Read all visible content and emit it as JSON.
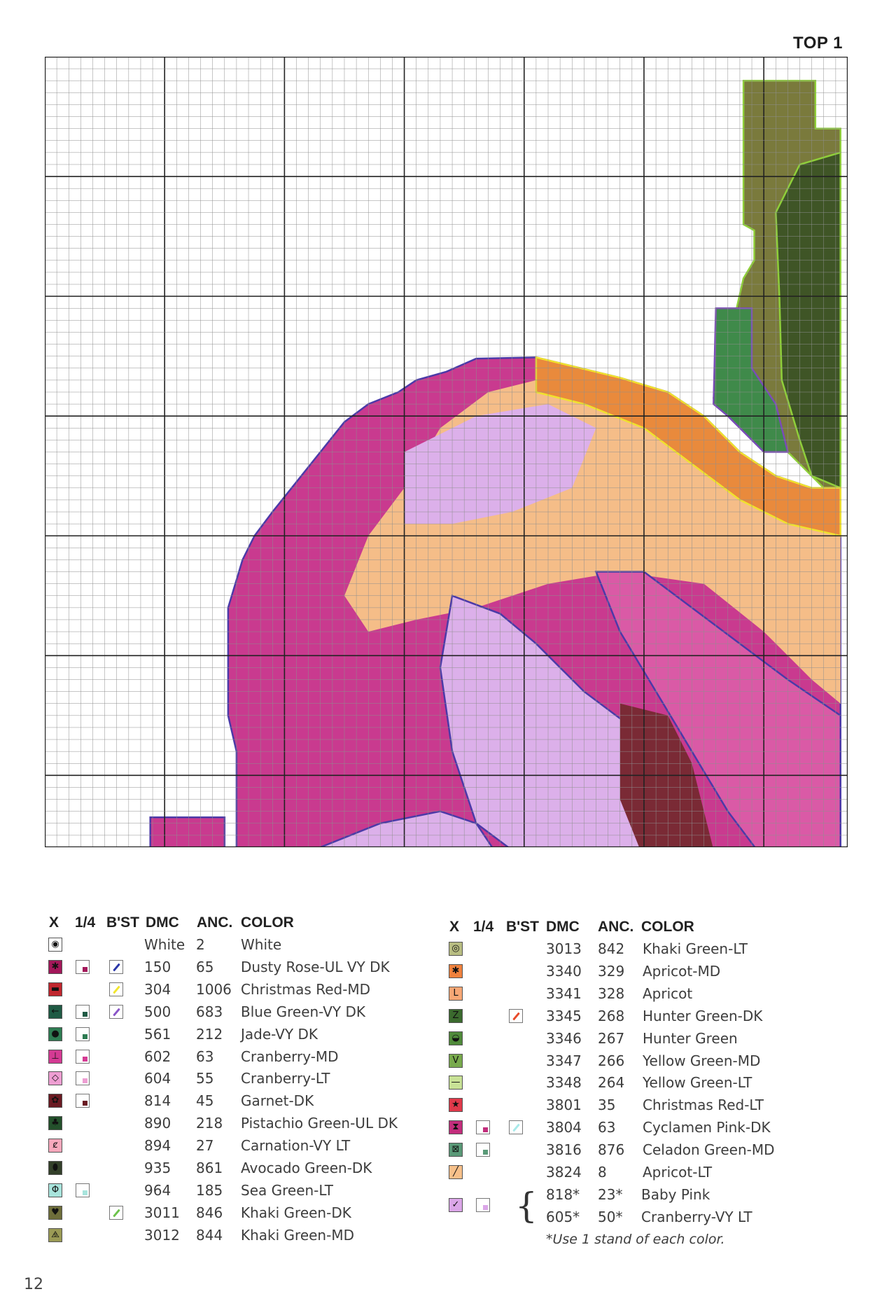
{
  "page_label": "TOP 1",
  "page_number": "12",
  "legend_headers": {
    "x": "X",
    "quarter": "1/4",
    "backstitch": "B'ST",
    "dmc": "DMC",
    "anchor": "ANC.",
    "color": "COLOR"
  },
  "legend_left": [
    {
      "dmc": "White",
      "anc": "2",
      "name": "White",
      "hex": "#ffffff",
      "glyph": "◉",
      "quarter": false,
      "bst": null
    },
    {
      "dmc": "150",
      "anc": "65",
      "name": "Dusty Rose-UL VY DK",
      "hex": "#a3185a",
      "glyph": "✱",
      "quarter": true,
      "bst": "#2a36a8"
    },
    {
      "dmc": "304",
      "anc": "1006",
      "name": "Christmas Red-MD",
      "hex": "#c0262e",
      "glyph": "▬",
      "quarter": false,
      "bst": "#f2e62e"
    },
    {
      "dmc": "500",
      "anc": "683",
      "name": "Blue Green-VY DK",
      "hex": "#1f5a44",
      "glyph": "←",
      "quarter": true,
      "bst": "#8a55c8"
    },
    {
      "dmc": "561",
      "anc": "212",
      "name": "Jade-VY DK",
      "hex": "#2e7c52",
      "glyph": "●",
      "quarter": true,
      "bst": null
    },
    {
      "dmc": "602",
      "anc": "63",
      "name": "Cranberry-MD",
      "hex": "#d43a93",
      "glyph": "⊥",
      "quarter": true,
      "bst": null
    },
    {
      "dmc": "604",
      "anc": "55",
      "name": "Cranberry-LT",
      "hex": "#ee9ed2",
      "glyph": "◇",
      "quarter": true,
      "bst": null
    },
    {
      "dmc": "814",
      "anc": "45",
      "name": "Garnet-DK",
      "hex": "#6a1a22",
      "glyph": "✿",
      "quarter": true,
      "bst": null
    },
    {
      "dmc": "890",
      "anc": "218",
      "name": "Pistachio Green-UL DK",
      "hex": "#23502b",
      "glyph": "♣",
      "quarter": false,
      "bst": null
    },
    {
      "dmc": "894",
      "anc": "27",
      "name": "Carnation-VY LT",
      "hex": "#f7a8bc",
      "glyph": "ȼ",
      "quarter": false,
      "bst": null
    },
    {
      "dmc": "935",
      "anc": "861",
      "name": "Avocado Green-DK",
      "hex": "#33402a",
      "glyph": "⬮",
      "quarter": false,
      "bst": null
    },
    {
      "dmc": "964",
      "anc": "185",
      "name": "Sea Green-LT",
      "hex": "#a8e4dc",
      "glyph": "Φ",
      "quarter": true,
      "bst": null
    },
    {
      "dmc": "3011",
      "anc": "846",
      "name": "Khaki Green-DK",
      "hex": "#6d6d3a",
      "glyph": "♥",
      "quarter": false,
      "bst": "#6cc24a"
    },
    {
      "dmc": "3012",
      "anc": "844",
      "name": "Khaki Green-MD",
      "hex": "#9a9a55",
      "glyph": "⧌",
      "quarter": false,
      "bst": null
    }
  ],
  "legend_right": [
    {
      "dmc": "3013",
      "anc": "842",
      "name": "Khaki Green-LT",
      "hex": "#b8bd82",
      "glyph": "◎",
      "quarter": false,
      "bst": null
    },
    {
      "dmc": "3340",
      "anc": "329",
      "name": "Apricot-MD",
      "hex": "#f0823e",
      "glyph": "✱",
      "quarter": false,
      "bst": null
    },
    {
      "dmc": "3341",
      "anc": "328",
      "name": "Apricot",
      "hex": "#f7a775",
      "glyph": "L",
      "quarter": false,
      "bst": null
    },
    {
      "dmc": "3345",
      "anc": "268",
      "name": "Hunter Green-DK",
      "hex": "#3b6a2e",
      "glyph": "Z",
      "quarter": false,
      "bst": "#e84a2a"
    },
    {
      "dmc": "3346",
      "anc": "267",
      "name": "Hunter Green",
      "hex": "#4f8a3a",
      "glyph": "◒",
      "quarter": false,
      "bst": null
    },
    {
      "dmc": "3347",
      "anc": "266",
      "name": "Yellow Green-MD",
      "hex": "#78aa4c",
      "glyph": "V",
      "quarter": false,
      "bst": null
    },
    {
      "dmc": "3348",
      "anc": "264",
      "name": "Yellow Green-LT",
      "hex": "#c8e296",
      "glyph": "—",
      "quarter": false,
      "bst": null
    },
    {
      "dmc": "3801",
      "anc": "35",
      "name": "Christmas Red-LT",
      "hex": "#e0394a",
      "glyph": "★",
      "quarter": false,
      "bst": null
    },
    {
      "dmc": "3804",
      "anc": "63",
      "name": "Cyclamen Pink-DK",
      "hex": "#c22d7c",
      "glyph": "⧗",
      "quarter": true,
      "bst": "#a8eaea"
    },
    {
      "dmc": "3816",
      "anc": "876",
      "name": "Celadon Green-MD",
      "hex": "#5a9a78",
      "glyph": "⊠",
      "quarter": true,
      "bst": null
    },
    {
      "dmc": "3824",
      "anc": "8",
      "name": "Apricot-LT",
      "hex": "#f7c08a",
      "glyph": "╱",
      "quarter": false,
      "bst": null
    }
  ],
  "legend_blend": {
    "hex": "#dba6e8",
    "glyph": "✓",
    "rows": [
      {
        "dmc": "818*",
        "anc": "23*",
        "name": "Baby Pink"
      },
      {
        "dmc": "605*",
        "anc": "50*",
        "name": "Cranberry-VY LT"
      }
    ],
    "note": "*Use 1 stand of each color."
  }
}
